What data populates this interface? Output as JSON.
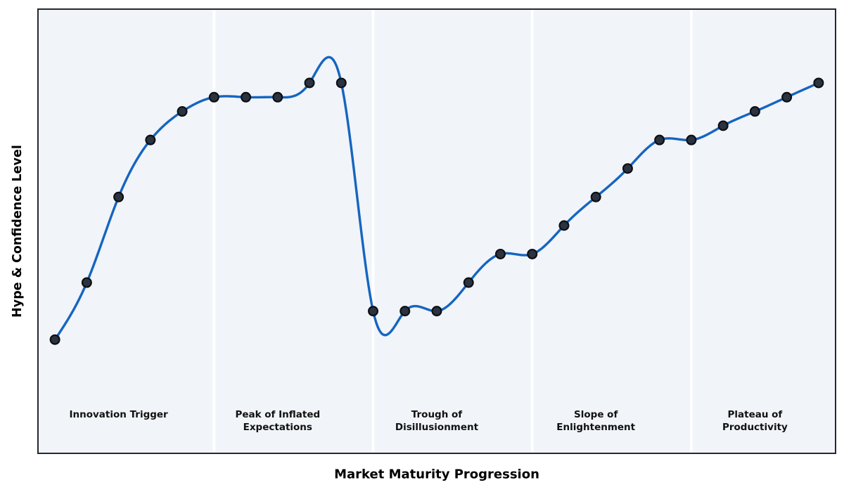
{
  "chart_data": {
    "type": "line",
    "title": "",
    "xlabel": "Market Maturity Progression",
    "ylabel": "Hype & Confidence Level",
    "x": [
      0,
      1,
      2,
      3,
      4,
      5,
      6,
      7,
      8,
      9,
      10,
      11,
      12,
      13,
      14,
      15,
      16,
      17,
      18,
      19,
      20,
      21,
      22,
      23,
      24
    ],
    "series": [
      {
        "name": "Hype & Confidence Level",
        "values": [
          20,
          40,
          70,
          90,
          100,
          105,
          105,
          105,
          110,
          110,
          30,
          30,
          30,
          40,
          50,
          50,
          60,
          70,
          80,
          90,
          90,
          95,
          100,
          105,
          110
        ]
      }
    ],
    "xlim": [
      -0.5,
      24.5
    ],
    "ylim": [
      -19.5,
      135.5
    ],
    "grid": false,
    "legend": "none",
    "line_style": "smooth-cubic-spline",
    "markers": "filled-circles",
    "phase_boundaries_x": [
      5,
      10,
      15,
      20
    ],
    "phases": [
      {
        "label": "Innovation Trigger",
        "center_x": 2
      },
      {
        "label": "Peak of Inflated\nExpectations",
        "center_x": 7
      },
      {
        "label": "Trough of\nDisillusionment",
        "center_x": 12
      },
      {
        "label": "Slope of\nEnlightenment",
        "center_x": 17
      },
      {
        "label": "Plateau of\nProductivity",
        "center_x": 22
      }
    ],
    "colors": {
      "line": "#1565c0",
      "marker_fill": "#2b3240",
      "marker_edge": "#0c0f14",
      "plot_bg": "#f1f4f8",
      "separator": "#ffffff",
      "frame": "#25282e",
      "phase_text": "#111111",
      "axis_text": "#000000"
    }
  }
}
